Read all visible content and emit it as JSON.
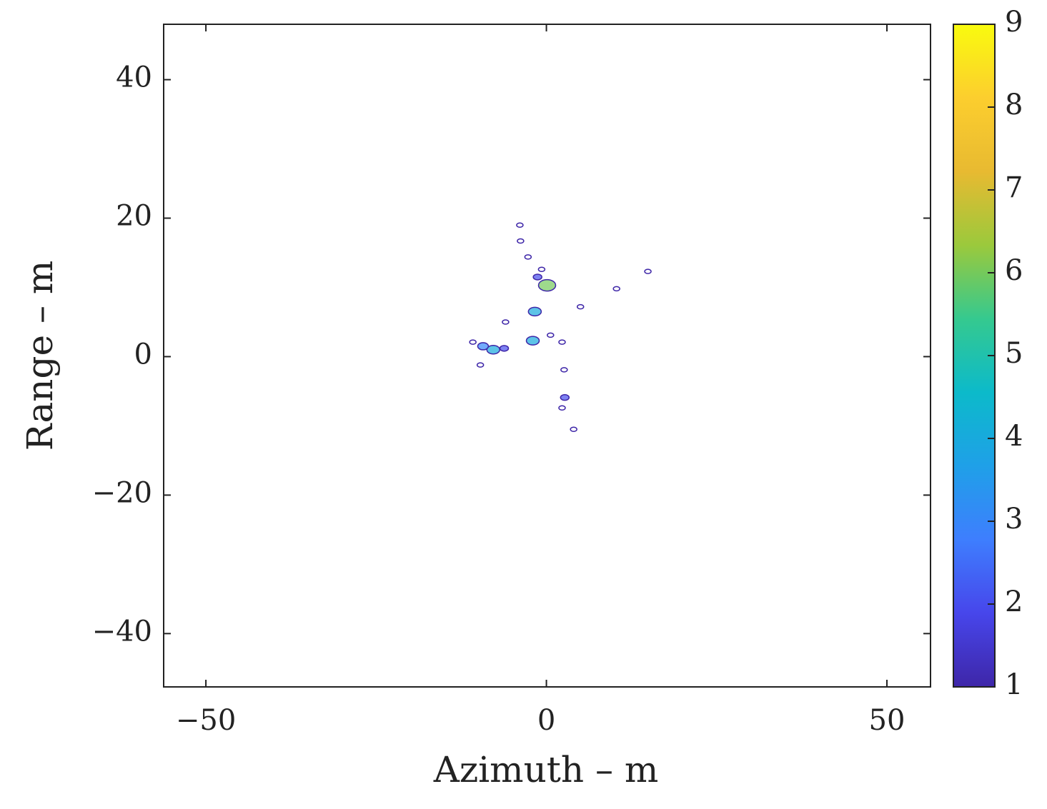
{
  "chart_data": {
    "type": "contour",
    "xlabel": "Azimuth – m",
    "ylabel": "Range – m",
    "xlim": [
      -56.2,
      56.4
    ],
    "ylim": [
      -47.7,
      48
    ],
    "xticks": [
      {
        "value": -50,
        "label": "−50"
      },
      0,
      50
    ],
    "yticks": [
      {
        "value": -40,
        "label": "−40"
      },
      {
        "value": -20,
        "label": "−20"
      },
      0,
      20,
      40
    ],
    "clim": [
      1,
      9
    ],
    "cticks": [
      1,
      2,
      3,
      4,
      5,
      6,
      7,
      8,
      9
    ],
    "colormap": [
      "#3e26a8",
      "#4746eb",
      "#3e7efe",
      "#1fa0e8",
      "#0cbaca",
      "#35c98f",
      "#9bc93c",
      "#e8ba31",
      "#fcce2e",
      "#f9fb0e"
    ],
    "x": [
      -3.9,
      -3.8,
      -2.7,
      -0.7,
      -1.3,
      0.1,
      -1.7,
      5,
      14.9,
      10.3,
      -7.8,
      -9.3,
      -6.2,
      -2,
      0.6,
      2.3,
      2.6,
      2.7,
      2.3,
      4,
      -6,
      -9.7,
      -10.8
    ],
    "y": [
      19,
      16.7,
      14.4,
      12.6,
      11.5,
      10.3,
      6.5,
      7.2,
      12.3,
      9.8,
      1,
      1.5,
      1.2,
      2.3,
      3.1,
      2.1,
      -1.9,
      -5.9,
      -7.4,
      -10.5,
      5,
      -1.2,
      2.1
    ],
    "levels": [
      1,
      1,
      1,
      1,
      2,
      6,
      4,
      1,
      1,
      1,
      4,
      3,
      2,
      4,
      1,
      1,
      1,
      2,
      1,
      1,
      1,
      1,
      1
    ]
  }
}
